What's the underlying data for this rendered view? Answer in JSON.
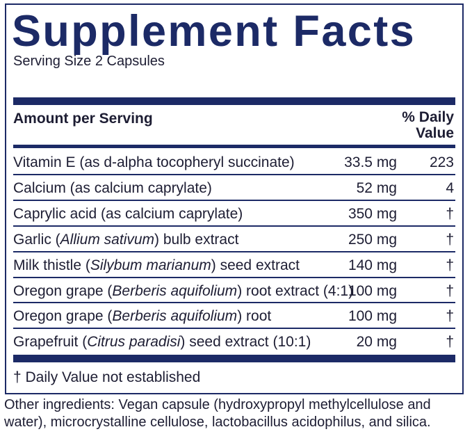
{
  "header": {
    "title": "Supplement Facts",
    "serving_size": "Serving Size 2 Capsules"
  },
  "table": {
    "columns": [
      "Amount per Serving",
      "% Daily Value"
    ],
    "rows": [
      {
        "name": [
          "Vitamin E (as d-alpha tocopheryl succinate)"
        ],
        "amount": "33.5 mg",
        "dv": "223"
      },
      {
        "name": [
          "Calcium (as calcium caprylate)"
        ],
        "amount": "52 mg",
        "dv": "4"
      },
      {
        "name": [
          "Caprylic acid (as calcium caprylate)"
        ],
        "amount": "350 mg",
        "dv": "†"
      },
      {
        "name": [
          "Garlic (",
          "Allium sativum",
          ") bulb extract"
        ],
        "amount": "250 mg",
        "dv": "†"
      },
      {
        "name": [
          "Milk thistle (",
          "Silybum marianum",
          ") seed extract"
        ],
        "amount": "140 mg",
        "dv": "†"
      },
      {
        "name": [
          "Oregon grape (",
          "Berberis aquifolium",
          ") root extract (4:1)"
        ],
        "amount": "100 mg",
        "dv": "†"
      },
      {
        "name": [
          "Oregon grape (",
          "Berberis aquifolium",
          ") root"
        ],
        "amount": "100 mg",
        "dv": "†"
      },
      {
        "name": [
          "Grapefruit (",
          "Citrus paradisi",
          ") seed extract (10:1)"
        ],
        "amount": "20 mg",
        "dv": "†"
      }
    ]
  },
  "footnote": "† Daily Value not established",
  "other_ingredients": "Other ingredients: Vegan capsule (hydroxypropyl methylcellulose and water), microcrystalline cellulose, lactobacillus acidophilus, and silica."
}
